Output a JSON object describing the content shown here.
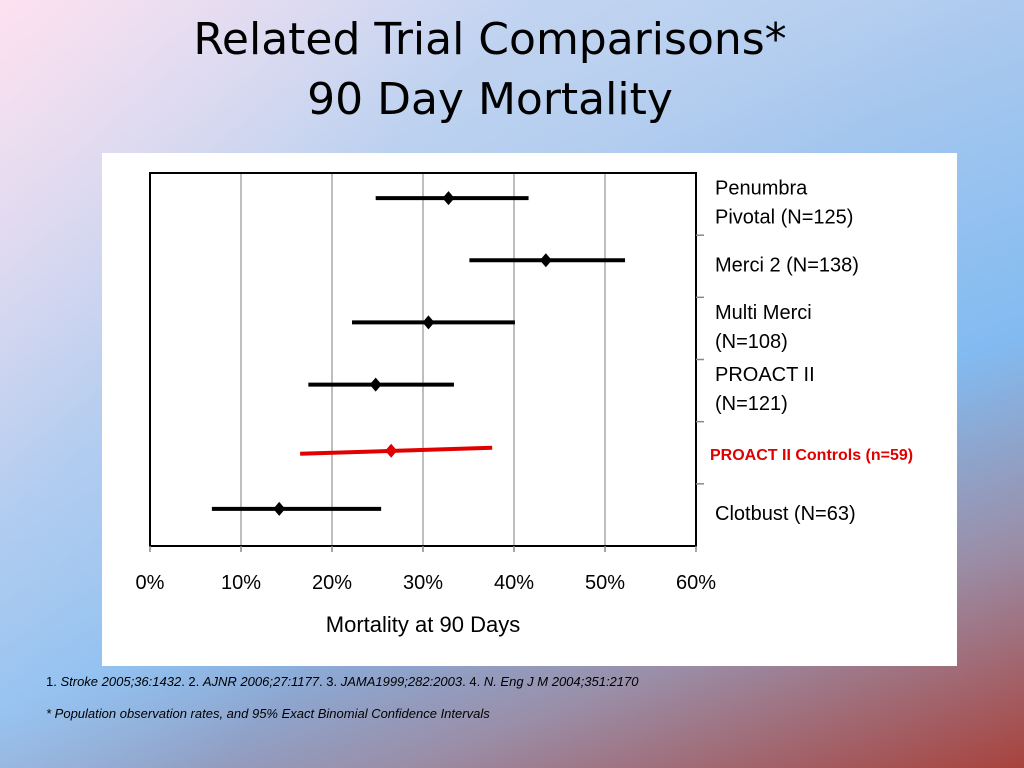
{
  "slide": {
    "title_line1": "Related Trial Comparisons*",
    "title_line2": "90 Day Mortality"
  },
  "chart_data": {
    "type": "forest",
    "xlabel": "Mortality at 90 Days",
    "xlim": [
      0,
      60
    ],
    "x_ticks": [
      "0%",
      "10%",
      "20%",
      "30%",
      "40%",
      "50%",
      "60%"
    ],
    "grid": "vertical",
    "legend": "right",
    "rows": [
      {
        "label_lines": [
          "Penumbra",
          "Pivotal (N=125)"
        ],
        "estimate": 32.8,
        "ci_low": 24.8,
        "ci_high": 41.6,
        "color": "#000000"
      },
      {
        "label_lines": [
          "Merci 2 (N=138)"
        ],
        "estimate": 43.5,
        "ci_low": 35.1,
        "ci_high": 52.2,
        "color": "#000000"
      },
      {
        "label_lines": [
          "Multi Merci",
          "(N=108)"
        ],
        "estimate": 30.6,
        "ci_low": 22.2,
        "ci_high": 40.1,
        "color": "#000000"
      },
      {
        "label_lines": [
          "PROACT II",
          "(N=121)"
        ],
        "estimate": 24.8,
        "ci_low": 17.4,
        "ci_high": 33.4,
        "color": "#000000"
      },
      {
        "label_lines": [
          "PROACT II Controls (n=59)"
        ],
        "estimate": 26.5,
        "ci_low": 16.5,
        "ci_high": 37.6,
        "color": "#e00000"
      },
      {
        "label_lines": [
          "Clotbust (N=63)"
        ],
        "estimate": 14.2,
        "ci_low": 6.8,
        "ci_high": 25.4,
        "color": "#000000"
      }
    ]
  },
  "footnotes": {
    "ref1_num": "1. ",
    "ref1": "Stroke 2005;36:1432",
    "ref2_num": ".  2. ",
    "ref2": "AJNR 2006;27:1177",
    "ref3_num": ".  3. ",
    "ref3": "JAMA1999;282:2003",
    "ref4_num": ". 4. ",
    "ref4": "N. Eng J M 2004;351:2170",
    "note": "* Population observation rates, and 95% Exact Binomial Confidence Intervals"
  }
}
